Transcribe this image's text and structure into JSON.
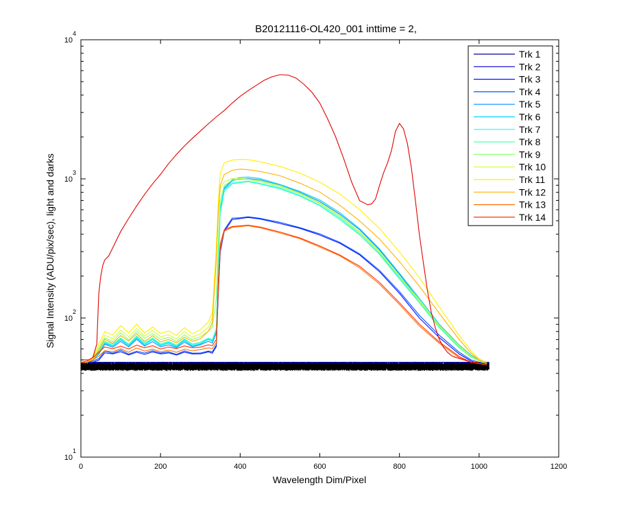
{
  "chart_data": {
    "type": "line",
    "title": "B20121116-OL420_001 inttime = 2,",
    "xlabel": "Wavelength Dim/Pixel",
    "ylabel": "Signal Intensity (ADU/pix/sec), light and darks",
    "xlim": [
      0,
      1200
    ],
    "ylim": [
      10,
      10000
    ],
    "yscale": "log",
    "x_ticks": [
      0,
      200,
      400,
      600,
      800,
      1000,
      1200
    ],
    "x_tick_labels": [
      "0",
      "200",
      "400",
      "600",
      "800",
      "1000",
      "1200"
    ],
    "y_ticks": [
      10,
      100,
      1000,
      10000
    ],
    "y_tick_base": "10",
    "y_tick_exponents": [
      "1",
      "2",
      "3",
      "4"
    ],
    "grid": false,
    "legend_position": "top-right",
    "dark_color": "#000000",
    "dark_level": 45,
    "series": [
      {
        "name": "Trk 1",
        "color": "#00008F",
        "x": [
          0,
          1025
        ],
        "y": [
          48,
          48
        ]
      },
      {
        "name": "Trk 2",
        "color": "#0000CF",
        "x": [
          0,
          1025
        ],
        "y": [
          48,
          48
        ]
      },
      {
        "name": "Trk 3",
        "color": "#0010FF",
        "x": [
          0,
          15,
          30,
          45,
          60,
          80,
          100,
          120,
          140,
          160,
          180,
          200,
          220,
          240,
          260,
          280,
          300,
          320,
          330,
          340,
          345,
          350,
          360,
          380,
          400,
          420,
          450,
          500,
          550,
          600,
          650,
          700,
          750,
          800,
          850,
          900,
          950,
          980,
          1000,
          1020
        ],
        "y": [
          48,
          48,
          48,
          50,
          56,
          55,
          57,
          54,
          57,
          55,
          57,
          55,
          56,
          54,
          57,
          55,
          55,
          57,
          56,
          62,
          150,
          300,
          420,
          510,
          520,
          530,
          515,
          480,
          440,
          395,
          345,
          285,
          215,
          150,
          100,
          72,
          55,
          49,
          47,
          46
        ]
      },
      {
        "name": "Trk 4",
        "color": "#0050FF",
        "x": [
          0,
          15,
          30,
          45,
          60,
          80,
          100,
          120,
          140,
          160,
          180,
          200,
          220,
          240,
          260,
          280,
          300,
          320,
          330,
          340,
          345,
          350,
          360,
          380,
          400,
          420,
          450,
          500,
          550,
          600,
          650,
          700,
          750,
          800,
          850,
          900,
          950,
          980,
          1000,
          1020
        ],
        "y": [
          48,
          48,
          49,
          51,
          58,
          56,
          59,
          55,
          58,
          56,
          58,
          56,
          57,
          55,
          58,
          56,
          56,
          58,
          57,
          64,
          155,
          310,
          430,
          520,
          525,
          535,
          520,
          485,
          445,
          400,
          350,
          290,
          220,
          155,
          104,
          75,
          57,
          50,
          48,
          46
        ]
      },
      {
        "name": "Trk 5",
        "color": "#008FFF",
        "x": [
          0,
          15,
          30,
          45,
          60,
          80,
          100,
          120,
          140,
          160,
          180,
          200,
          220,
          240,
          260,
          280,
          300,
          320,
          330,
          340,
          345,
          350,
          360,
          380,
          400,
          420,
          450,
          500,
          550,
          600,
          650,
          700,
          750,
          800,
          850,
          900,
          950,
          980,
          1000,
          1020
        ],
        "y": [
          48,
          48,
          50,
          55,
          65,
          62,
          68,
          62,
          70,
          63,
          68,
          62,
          64,
          61,
          67,
          62,
          64,
          68,
          66,
          78,
          250,
          600,
          850,
          970,
          1000,
          1010,
          980,
          900,
          800,
          690,
          560,
          430,
          310,
          205,
          135,
          88,
          63,
          53,
          49,
          47
        ]
      },
      {
        "name": "Trk 6",
        "color": "#00CFFF",
        "x": [
          0,
          15,
          30,
          45,
          60,
          80,
          100,
          120,
          140,
          160,
          180,
          200,
          220,
          240,
          260,
          280,
          300,
          320,
          330,
          340,
          345,
          350,
          360,
          380,
          400,
          420,
          450,
          500,
          550,
          600,
          650,
          700,
          750,
          800,
          850,
          900,
          950,
          980,
          1000,
          1020
        ],
        "y": [
          48,
          48,
          50,
          56,
          66,
          63,
          70,
          63,
          72,
          64,
          70,
          63,
          66,
          62,
          69,
          63,
          65,
          70,
          68,
          80,
          260,
          620,
          870,
          990,
          1020,
          1030,
          1000,
          915,
          815,
          705,
          575,
          440,
          315,
          210,
          138,
          90,
          64,
          54,
          50,
          47
        ]
      },
      {
        "name": "Trk 7",
        "color": "#10FFEF",
        "x": [
          0,
          15,
          30,
          45,
          60,
          80,
          100,
          120,
          140,
          160,
          180,
          200,
          220,
          240,
          260,
          280,
          300,
          320,
          330,
          340,
          345,
          350,
          360,
          380,
          400,
          420,
          450,
          500,
          550,
          600,
          650,
          700,
          750,
          800,
          850,
          900,
          950,
          980,
          1000,
          1020
        ],
        "y": [
          48,
          48,
          50,
          57,
          67,
          64,
          71,
          64,
          73,
          65,
          71,
          64,
          67,
          63,
          70,
          64,
          66,
          71,
          69,
          82,
          240,
          580,
          830,
          930,
          950,
          960,
          930,
          860,
          760,
          650,
          520,
          400,
          290,
          195,
          130,
          86,
          62,
          53,
          49,
          47
        ]
      },
      {
        "name": "Trk 8",
        "color": "#50FFAF",
        "x": [
          0,
          15,
          30,
          45,
          60,
          80,
          100,
          120,
          140,
          160,
          180,
          200,
          220,
          240,
          260,
          280,
          300,
          320,
          330,
          340,
          345,
          350,
          360,
          380,
          400,
          420,
          450,
          500,
          550,
          600,
          650,
          700,
          750,
          800,
          850,
          900,
          950,
          980,
          1000,
          1020
        ],
        "y": [
          48,
          48,
          50,
          57,
          68,
          65,
          72,
          65,
          74,
          66,
          72,
          65,
          68,
          64,
          71,
          65,
          67,
          72,
          70,
          84,
          230,
          560,
          810,
          920,
          940,
          950,
          920,
          850,
          750,
          640,
          510,
          395,
          285,
          190,
          128,
          85,
          61,
          52,
          49,
          47
        ]
      },
      {
        "name": "Trk 9",
        "color": "#8FFF70",
        "x": [
          0,
          15,
          30,
          45,
          60,
          80,
          100,
          120,
          140,
          160,
          180,
          200,
          220,
          240,
          260,
          280,
          300,
          320,
          330,
          340,
          345,
          350,
          360,
          380,
          400,
          420,
          450,
          500,
          550,
          600,
          650,
          700,
          750,
          800,
          850,
          900,
          950,
          980,
          1000,
          1020
        ],
        "y": [
          48,
          48,
          51,
          60,
          72,
          68,
          78,
          70,
          80,
          71,
          77,
          70,
          73,
          68,
          76,
          70,
          73,
          80,
          86,
          140,
          350,
          700,
          900,
          980,
          990,
          985,
          955,
          880,
          780,
          665,
          535,
          410,
          295,
          198,
          132,
          87,
          62,
          53,
          49,
          47
        ]
      },
      {
        "name": "Trk 10",
        "color": "#CFFF30",
        "x": [
          0,
          15,
          30,
          45,
          60,
          80,
          100,
          120,
          140,
          160,
          180,
          200,
          220,
          240,
          260,
          280,
          300,
          320,
          330,
          340,
          345,
          350,
          360,
          380,
          400,
          420,
          450,
          500,
          550,
          600,
          650,
          700,
          750,
          800,
          850,
          900,
          950,
          980,
          1000,
          1020
        ],
        "y": [
          48,
          48,
          51,
          62,
          75,
          71,
          82,
          73,
          84,
          74,
          81,
          73,
          76,
          71,
          80,
          73,
          77,
          86,
          100,
          300,
          600,
          850,
          960,
          1000,
          1005,
          1000,
          970,
          895,
          790,
          675,
          545,
          415,
          300,
          200,
          134,
          88,
          63,
          53,
          49,
          47
        ]
      },
      {
        "name": "Trk 11",
        "color": "#FFEF00",
        "x": [
          0,
          15,
          30,
          45,
          60,
          80,
          100,
          120,
          140,
          160,
          180,
          200,
          220,
          240,
          260,
          280,
          300,
          320,
          330,
          340,
          345,
          350,
          360,
          380,
          400,
          420,
          450,
          500,
          550,
          600,
          650,
          700,
          750,
          800,
          850,
          900,
          950,
          980,
          1000,
          1020
        ],
        "y": [
          48,
          48,
          52,
          65,
          80,
          75,
          88,
          78,
          90,
          78,
          86,
          77,
          81,
          75,
          85,
          77,
          82,
          94,
          110,
          320,
          700,
          1100,
          1300,
          1360,
          1380,
          1370,
          1330,
          1230,
          1100,
          950,
          780,
          600,
          440,
          300,
          195,
          120,
          75,
          58,
          51,
          48
        ]
      },
      {
        "name": "Trk 12",
        "color": "#FFAF00",
        "x": [
          0,
          15,
          30,
          45,
          60,
          80,
          100,
          120,
          140,
          160,
          180,
          200,
          220,
          240,
          260,
          280,
          300,
          320,
          330,
          340,
          345,
          350,
          360,
          380,
          400,
          420,
          450,
          500,
          550,
          600,
          650,
          700,
          750,
          800,
          850,
          900,
          950,
          980,
          1000,
          1020
        ],
        "y": [
          48,
          48,
          50,
          58,
          70,
          66,
          75,
          68,
          77,
          68,
          75,
          67,
          70,
          66,
          73,
          68,
          71,
          80,
          92,
          260,
          560,
          900,
          1080,
          1150,
          1170,
          1160,
          1130,
          1050,
          930,
          800,
          650,
          500,
          370,
          255,
          170,
          108,
          70,
          56,
          50,
          47
        ]
      },
      {
        "name": "Trk 13",
        "color": "#FF7000",
        "x": [
          0,
          15,
          30,
          45,
          60,
          80,
          100,
          120,
          140,
          160,
          180,
          200,
          220,
          240,
          260,
          280,
          300,
          320,
          330,
          340,
          345,
          350,
          360,
          380,
          400,
          420,
          450,
          500,
          550,
          600,
          650,
          700,
          750,
          800,
          850,
          900,
          950,
          980,
          1000,
          1020
        ],
        "y": [
          48,
          48,
          50,
          53,
          58,
          57,
          60,
          57,
          61,
          58,
          60,
          57,
          59,
          57,
          60,
          58,
          59,
          61,
          60,
          66,
          160,
          320,
          420,
          450,
          455,
          460,
          445,
          410,
          370,
          325,
          280,
          230,
          175,
          125,
          88,
          66,
          52,
          48,
          47,
          46
        ]
      },
      {
        "name": "Trk 14",
        "color": "#FF3000",
        "x": [
          0,
          15,
          30,
          45,
          60,
          80,
          100,
          120,
          140,
          160,
          180,
          200,
          220,
          240,
          260,
          280,
          300,
          320,
          330,
          340,
          345,
          350,
          360,
          380,
          400,
          420,
          450,
          500,
          550,
          600,
          650,
          700,
          750,
          800,
          850,
          900,
          950,
          980,
          1000,
          1020
        ],
        "y": [
          48,
          49,
          52,
          57,
          62,
          60,
          63,
          60,
          64,
          61,
          63,
          60,
          62,
          60,
          63,
          61,
          62,
          64,
          63,
          70,
          180,
          340,
          430,
          455,
          460,
          465,
          450,
          415,
          375,
          330,
          285,
          235,
          180,
          128,
          90,
          67,
          53,
          48,
          47,
          46
        ]
      },
      {
        "name": "",
        "color": "#E00000",
        "x": [
          0,
          20,
          30,
          40,
          45,
          50,
          55,
          60,
          70,
          80,
          100,
          120,
          140,
          160,
          180,
          200,
          220,
          240,
          260,
          280,
          300,
          320,
          340,
          360,
          380,
          400,
          420,
          440,
          460,
          480,
          500,
          520,
          540,
          560,
          580,
          600,
          620,
          640,
          660,
          680,
          700,
          720,
          730,
          740,
          750,
          760,
          770,
          780,
          790,
          800,
          810,
          820,
          830,
          840,
          850,
          860,
          870,
          880,
          890,
          900,
          910,
          920,
          930,
          940,
          950,
          960,
          970,
          980,
          1000
        ],
        "y": [
          50,
          50,
          52,
          65,
          150,
          200,
          240,
          260,
          280,
          320,
          420,
          520,
          640,
          770,
          920,
          1080,
          1280,
          1500,
          1720,
          1950,
          2200,
          2500,
          2800,
          3100,
          3500,
          3900,
          4300,
          4700,
          5100,
          5400,
          5600,
          5550,
          5300,
          4800,
          4200,
          3500,
          2700,
          2000,
          1400,
          950,
          700,
          650,
          660,
          720,
          900,
          1100,
          1300,
          1600,
          2200,
          2500,
          2300,
          1800,
          1200,
          700,
          400,
          250,
          160,
          110,
          85,
          70,
          62,
          57,
          54,
          52,
          51,
          50,
          49,
          48,
          48
        ]
      }
    ]
  }
}
